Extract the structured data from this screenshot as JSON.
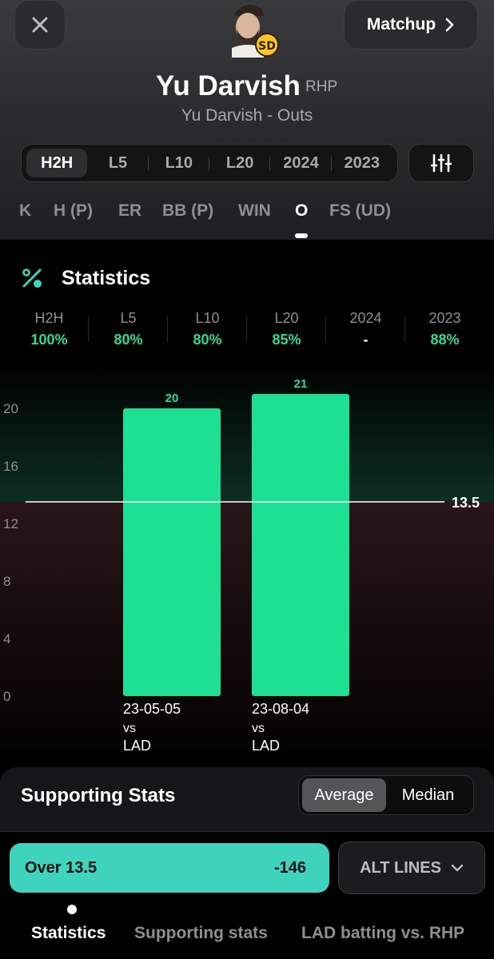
{
  "header": {
    "close_icon": "close-icon",
    "matchup_label": "Matchup",
    "player_name": "Yu Darvish",
    "player_position": "RHP",
    "subtitle": "Yu Darvish - Outs",
    "team_badge": "SD"
  },
  "range_tabs": [
    {
      "label": "H2H",
      "active": true
    },
    {
      "label": "L5",
      "active": false
    },
    {
      "label": "L10",
      "active": false
    },
    {
      "label": "L20",
      "active": false
    },
    {
      "label": "2024",
      "active": false
    },
    {
      "label": "2023",
      "active": false
    }
  ],
  "stat_tabs": [
    {
      "label": "K"
    },
    {
      "label": "H (P)"
    },
    {
      "label": "ER"
    },
    {
      "label": "BB (P)"
    },
    {
      "label": "WIN"
    },
    {
      "label": "O",
      "active": true
    },
    {
      "label": "FS (UD)"
    }
  ],
  "statistics": {
    "title": "Statistics",
    "percentages": [
      {
        "label": "H2H",
        "value": "100%"
      },
      {
        "label": "L5",
        "value": "80%"
      },
      {
        "label": "L10",
        "value": "80%"
      },
      {
        "label": "L20",
        "value": "85%"
      },
      {
        "label": "2024",
        "value": "-"
      },
      {
        "label": "2023",
        "value": "88%"
      }
    ]
  },
  "chart_data": {
    "type": "bar",
    "categories": [
      "23-05-05 vs LAD",
      "23-08-04 vs LAD"
    ],
    "category_lines": [
      [
        "23-05-05",
        "vs",
        "LAD"
      ],
      [
        "23-08-04",
        "vs",
        "LAD"
      ]
    ],
    "values": [
      20,
      21
    ],
    "value_labels": [
      "20",
      "21"
    ],
    "yticks": [
      0,
      4,
      8,
      12,
      16,
      20
    ],
    "ylim": [
      0,
      22
    ],
    "line": 13.5,
    "line_label": "13.5",
    "bar_color": "#1ee092",
    "title": "",
    "xlabel": "",
    "ylabel": ""
  },
  "supporting_stats": {
    "title": "Supporting Stats",
    "options": [
      {
        "label": "Average",
        "active": true
      },
      {
        "label": "Median",
        "active": false
      }
    ]
  },
  "bet": {
    "over_label": "Over 13.5",
    "odds": "-146",
    "alt_lines_label": "ALT LINES",
    "accent": "#3fd3bd"
  },
  "bottom_nav": [
    {
      "label": "Statistics",
      "active": true
    },
    {
      "label": "Supporting stats",
      "active": false
    },
    {
      "label": "LAD batting vs. RHP",
      "active": false
    }
  ]
}
